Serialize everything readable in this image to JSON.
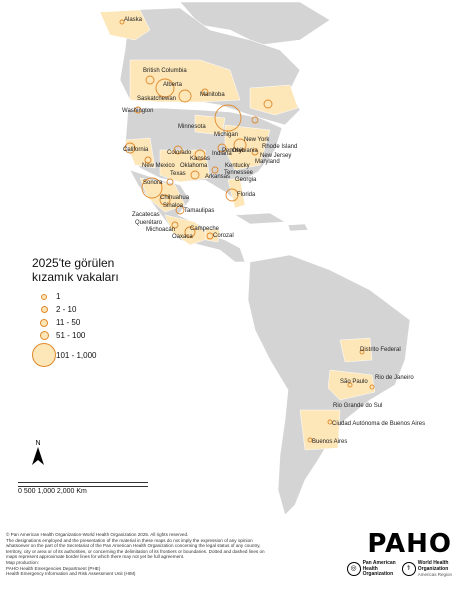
{
  "legend": {
    "title": "2025'te görülen kızamık vakaları",
    "items": [
      {
        "label": "1",
        "level": 1
      },
      {
        "label": "2 - 10",
        "level": 2
      },
      {
        "label": "11 - 50",
        "level": 3
      },
      {
        "label": "51 - 100",
        "level": 4
      },
      {
        "label": "101 - 1,000",
        "level": 5
      }
    ]
  },
  "north_label": "N",
  "scale_label": "0   500 1,000     2,000 Km",
  "region_labels": [
    "Alaska",
    "British Columbia",
    "Alberta",
    "Saskatchewan",
    "Manitoba",
    "Washington",
    "Minnesota",
    "Michigan",
    "New York",
    "Rhode Island",
    "Pennsylvania",
    "Maryland",
    "New Jersey",
    "California",
    "Colorado",
    "Kansas",
    "Indiana",
    "Ohio",
    "Kentucky",
    "New Mexico",
    "Oklahoma",
    "Tennessee",
    "Arkansas",
    "Georgia",
    "Texas",
    "Florida",
    "Sonora",
    "Chihuahua",
    "Sinaloa",
    "Tamaulipas",
    "Zacatecas",
    "Querétaro",
    "Michoacán",
    "Oaxaca",
    "Campeche",
    "Corozal",
    "Distrito Federal",
    "São Paulo",
    "Rio de Janeiro",
    "Rio Grande do Sul",
    "Ciudad Autónoma de Buenos Aires",
    "Buenos Aires"
  ],
  "colors": {
    "affected_fill": "#fde6b8",
    "circle_stroke": "#e0892a",
    "land": "#d4d4d4",
    "border": "#ffffff"
  },
  "disclaimer": [
    "© Pan American Health Organization-World Health Organization 2025. All rights reserved.",
    "The designations employed and the presentation of the material in these maps do not imply the expression of any opinion",
    "whatsoever on the part of the Secretariat of the Pan American Health Organization concerning the legal status of any country,",
    "territory, city or area or of its authorities, or concerning the delimitation of its frontiers or boundaries. Dotted and dashed lines on",
    "maps represent approximate border lines for which there may not yet be full agreement.",
    "Map production:",
    "PAHO Health Emergencies Department (PHE)",
    "Health Emergency Information and Risk Assessment Unit (HIM)"
  ],
  "logo": {
    "paho": "PAHO",
    "org1_line1": "Pan American",
    "org1_line2": "Health",
    "org1_line3": "Organization",
    "org2_line1": "World Health",
    "org2_line2": "Organization",
    "org2_line3": "Americas Region"
  }
}
